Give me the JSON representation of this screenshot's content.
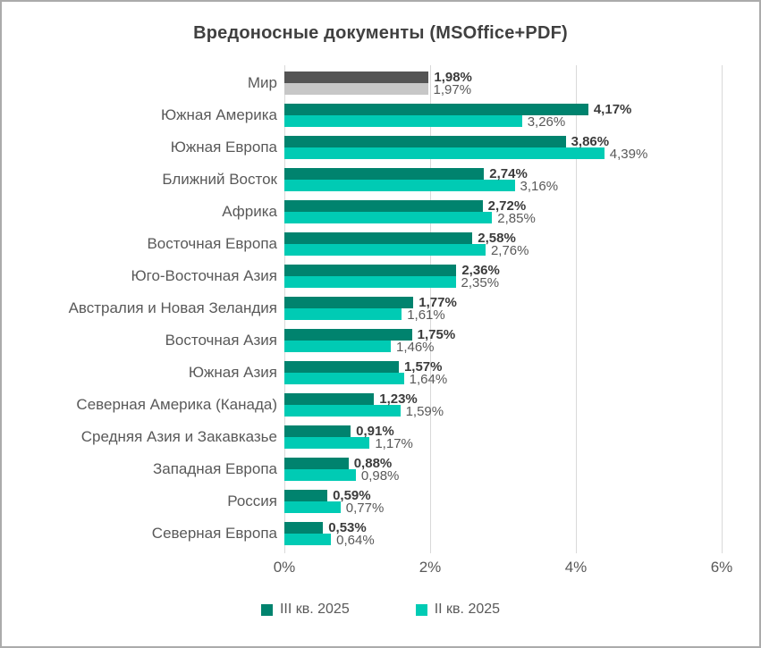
{
  "frame": {
    "background": "#ffffff",
    "border_color": "#ababab"
  },
  "chart_data": {
    "type": "bar",
    "orientation": "horizontal",
    "title": "Вредоносные документы (MSOffice+PDF)",
    "categories": [
      "Мир",
      "Южная Америка",
      "Южная Европа",
      "Ближний Восток",
      "Африка",
      "Восточная Европа",
      "Юго-Восточная Азия",
      "Австралия и Новая Зеландия",
      "Восточная Азия",
      "Южная Азия",
      "Северная Америка (Канада)",
      "Средняя Азия и Закавказье",
      "Западная Европа",
      "Россия",
      "Северная Европа"
    ],
    "series": [
      {
        "name": "III кв. 2025",
        "color": "#00836e",
        "values": [
          1.98,
          4.17,
          3.86,
          2.74,
          2.72,
          2.58,
          2.36,
          1.77,
          1.75,
          1.57,
          1.23,
          0.91,
          0.88,
          0.59,
          0.53
        ],
        "labels": [
          "1,98%",
          "4,17%",
          "3,86%",
          "2,74%",
          "2,72%",
          "2,58%",
          "2,36%",
          "1,77%",
          "1,75%",
          "1,57%",
          "1,23%",
          "0,91%",
          "0,88%",
          "0,59%",
          "0,53%"
        ]
      },
      {
        "name": "II кв. 2025",
        "color": "#00cbb4",
        "values": [
          1.97,
          3.26,
          4.39,
          3.16,
          2.85,
          2.76,
          2.35,
          1.61,
          1.46,
          1.64,
          1.59,
          1.17,
          0.98,
          0.77,
          0.64
        ],
        "labels": [
          "1,97%",
          "3,26%",
          "4,39%",
          "3,16%",
          "2,85%",
          "2,76%",
          "2,35%",
          "1,61%",
          "1,46%",
          "1,64%",
          "1,59%",
          "1,17%",
          "0,98%",
          "0,77%",
          "0,64%"
        ]
      }
    ],
    "highlight_category": "Мир",
    "highlight_colors": [
      "#545454",
      "#c7c7c7"
    ],
    "xlim": [
      0,
      6
    ],
    "x_ticks": [
      "0%",
      "2%",
      "4%",
      "6%"
    ],
    "grid": true,
    "gridline_color": "#d9d9d9",
    "legend_position": "bottom"
  }
}
